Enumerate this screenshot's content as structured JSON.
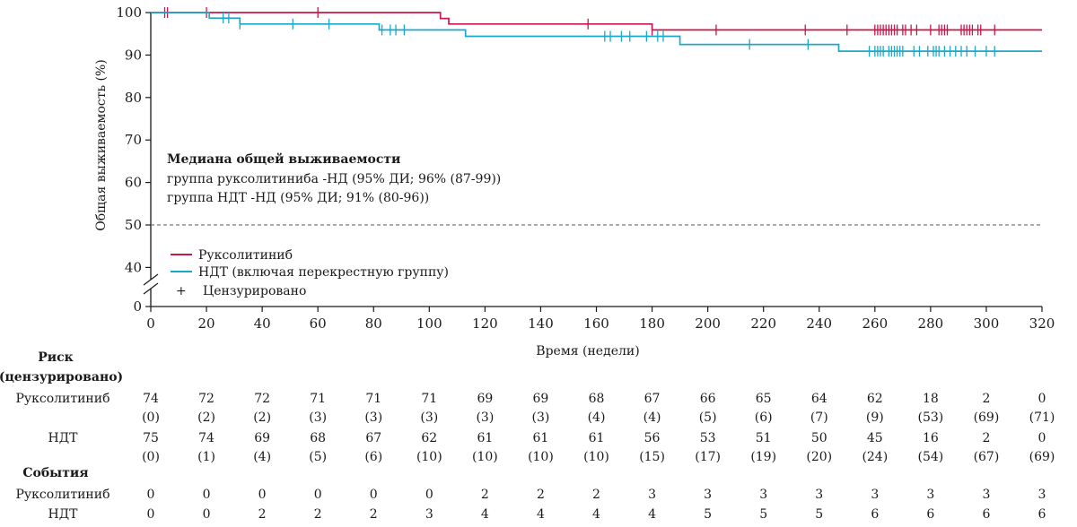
{
  "chart_data": {
    "type": "line",
    "subtype": "kaplan-meier",
    "xlabel": "Время (недели)",
    "ylabel": "Общая выживаемость (%)",
    "xlim": [
      0,
      320
    ],
    "ylim": [
      0,
      100
    ],
    "x_ticks": [
      0,
      20,
      40,
      60,
      80,
      100,
      120,
      140,
      160,
      180,
      200,
      220,
      240,
      260,
      280,
      300,
      320
    ],
    "y_ticks": [
      0,
      40,
      50,
      60,
      70,
      80,
      90,
      100
    ],
    "y_axis_break": "between 0 and 40",
    "reference_line": {
      "y": 50,
      "style": "dashed"
    },
    "grid": false,
    "annotation": {
      "title": "Медиана общей выживаемости",
      "lines": [
        "группа руксолитиниба -НД (95% ДИ;  96% (87-99))",
        "группа НДТ -НД (95% ДИ; 91% (80-96))"
      ]
    },
    "legend": {
      "position": "lower-left",
      "items": [
        {
          "label": "Руксолитиниб",
          "color": "#c8174a",
          "marker": "line"
        },
        {
          "label": "НДТ (включая перекрестную группу)",
          "color": "#1aa9c9",
          "marker": "line"
        },
        {
          "label": "Цензурировано",
          "color": "#1a1a1a",
          "marker": "+"
        }
      ]
    },
    "series": [
      {
        "name": "Руксолитиниб",
        "color": "#c8174a",
        "steps": [
          [
            0,
            100
          ],
          [
            104,
            100
          ],
          [
            104,
            98.6
          ],
          [
            107,
            98.6
          ],
          [
            107,
            97.3
          ],
          [
            180,
            97.3
          ],
          [
            180,
            95.9
          ],
          [
            320,
            95.9
          ]
        ],
        "censored": [
          [
            5,
            100
          ],
          [
            6,
            100
          ],
          [
            20,
            100
          ],
          [
            60,
            100
          ],
          [
            157,
            97.3
          ],
          [
            180,
            95.9
          ],
          [
            203,
            95.9
          ],
          [
            235,
            95.9
          ],
          [
            250,
            95.9
          ],
          [
            260,
            95.9
          ],
          [
            261,
            95.9
          ],
          [
            262,
            95.9
          ],
          [
            263,
            95.9
          ],
          [
            264,
            95.9
          ],
          [
            265,
            95.9
          ],
          [
            266,
            95.9
          ],
          [
            267,
            95.9
          ],
          [
            268,
            95.9
          ],
          [
            270,
            95.9
          ],
          [
            271,
            95.9
          ],
          [
            273,
            95.9
          ],
          [
            275,
            95.9
          ],
          [
            280,
            95.9
          ],
          [
            283,
            95.9
          ],
          [
            284,
            95.9
          ],
          [
            285,
            95.9
          ],
          [
            286,
            95.9
          ],
          [
            291,
            95.9
          ],
          [
            292,
            95.9
          ],
          [
            293,
            95.9
          ],
          [
            294,
            95.9
          ],
          [
            295,
            95.9
          ],
          [
            297,
            95.9
          ],
          [
            298,
            95.9
          ],
          [
            303,
            95.9
          ]
        ]
      },
      {
        "name": "НДТ (включая перекрестную группу)",
        "color": "#1aa9c9",
        "steps": [
          [
            0,
            100
          ],
          [
            21,
            100
          ],
          [
            21,
            98.7
          ],
          [
            32,
            98.7
          ],
          [
            32,
            97.3
          ],
          [
            82,
            97.3
          ],
          [
            82,
            95.9
          ],
          [
            113,
            95.9
          ],
          [
            113,
            94.4
          ],
          [
            190,
            94.4
          ],
          [
            190,
            92.5
          ],
          [
            247,
            92.5
          ],
          [
            247,
            90.9
          ],
          [
            320,
            90.9
          ]
        ],
        "censored": [
          [
            26,
            98.7
          ],
          [
            28,
            98.7
          ],
          [
            32,
            97.3
          ],
          [
            51,
            97.3
          ],
          [
            64,
            97.3
          ],
          [
            83,
            95.9
          ],
          [
            86,
            95.9
          ],
          [
            88,
            95.9
          ],
          [
            91,
            95.9
          ],
          [
            163,
            94.4
          ],
          [
            165,
            94.4
          ],
          [
            169,
            94.4
          ],
          [
            172,
            94.4
          ],
          [
            178,
            94.4
          ],
          [
            182,
            94.4
          ],
          [
            184,
            94.4
          ],
          [
            215,
            92.5
          ],
          [
            236,
            92.5
          ],
          [
            258,
            90.9
          ],
          [
            260,
            90.9
          ],
          [
            261,
            90.9
          ],
          [
            262,
            90.9
          ],
          [
            263,
            90.9
          ],
          [
            265,
            90.9
          ],
          [
            266,
            90.9
          ],
          [
            267,
            90.9
          ],
          [
            268,
            90.9
          ],
          [
            269,
            90.9
          ],
          [
            270,
            90.9
          ],
          [
            274,
            90.9
          ],
          [
            276,
            90.9
          ],
          [
            279,
            90.9
          ],
          [
            281,
            90.9
          ],
          [
            282,
            90.9
          ],
          [
            283,
            90.9
          ],
          [
            285,
            90.9
          ],
          [
            287,
            90.9
          ],
          [
            289,
            90.9
          ],
          [
            291,
            90.9
          ],
          [
            293,
            90.9
          ],
          [
            296,
            90.9
          ],
          [
            300,
            90.9
          ],
          [
            303,
            90.9
          ]
        ]
      }
    ]
  },
  "risk_table": {
    "header_line1": "Риск",
    "header_line2": "(цензурировано)",
    "rows": [
      {
        "label": "Руксолитиниб",
        "at_risk": [
          "74",
          "72",
          "72",
          "71",
          "71",
          "71",
          "69",
          "69",
          "68",
          "67",
          "66",
          "65",
          "64",
          "62",
          "18",
          "2",
          "0"
        ],
        "censored": [
          "(0)",
          "(2)",
          "(2)",
          "(3)",
          "(3)",
          "(3)",
          "(3)",
          "(3)",
          "(4)",
          "(4)",
          "(5)",
          "(6)",
          "(7)",
          "(9)",
          "(53)",
          "(69)",
          "(71)"
        ]
      },
      {
        "label": "НДТ",
        "at_risk": [
          "75",
          "74",
          "69",
          "68",
          "67",
          "62",
          "61",
          "61",
          "61",
          "56",
          "53",
          "51",
          "50",
          "45",
          "16",
          "2",
          "0"
        ],
        "censored": [
          "(0)",
          "(1)",
          "(4)",
          "(5)",
          "(6)",
          "(10)",
          "(10)",
          "(10)",
          "(10)",
          "(15)",
          "(17)",
          "(19)",
          "(20)",
          "(24)",
          "(54)",
          "(67)",
          "(69)"
        ]
      }
    ]
  },
  "events_table": {
    "header": "События",
    "rows": [
      {
        "label": "Руксолитиниб",
        "values": [
          "0",
          "0",
          "0",
          "0",
          "0",
          "0",
          "2",
          "2",
          "2",
          "3",
          "3",
          "3",
          "3",
          "3",
          "3",
          "3",
          "3"
        ]
      },
      {
        "label": "НДТ",
        "values": [
          "0",
          "0",
          "2",
          "2",
          "2",
          "3",
          "4",
          "4",
          "4",
          "4",
          "5",
          "5",
          "5",
          "6",
          "6",
          "6",
          "6"
        ]
      }
    ]
  }
}
